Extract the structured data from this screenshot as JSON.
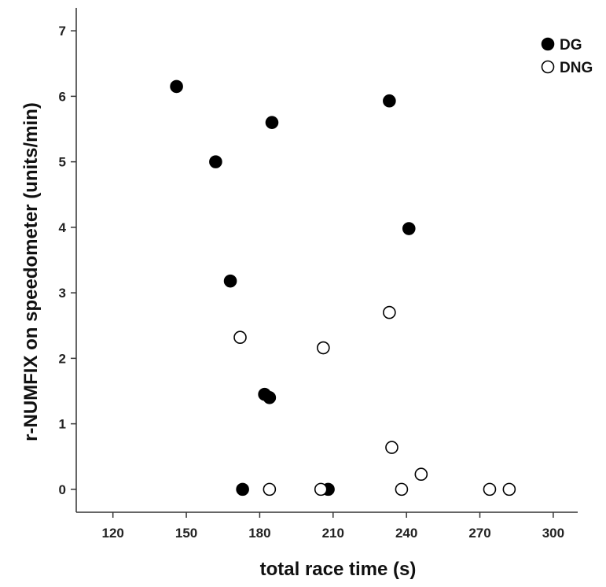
{
  "chart_data": {
    "type": "scatter",
    "title": "",
    "xlabel": "total race time (s)",
    "ylabel": "r-NUMFIX on speedometer (units/min)",
    "xlim": [
      105,
      310
    ],
    "ylim": [
      -0.35,
      7.35
    ],
    "xticks": [
      120,
      150,
      180,
      210,
      240,
      270,
      300
    ],
    "yticks": [
      0,
      1,
      2,
      3,
      4,
      5,
      6,
      7
    ],
    "grid": false,
    "legend_position": "top-right",
    "series": [
      {
        "name": "DG",
        "marker": "filled-circle",
        "color": "#000000",
        "points": [
          [
            146,
            6.15
          ],
          [
            185,
            5.6
          ],
          [
            233,
            5.93
          ],
          [
            162,
            5.0
          ],
          [
            241,
            3.98
          ],
          [
            168,
            3.18
          ],
          [
            182,
            1.45
          ],
          [
            184,
            1.4
          ],
          [
            173,
            0.0
          ],
          [
            208,
            0.0
          ]
        ]
      },
      {
        "name": "DNG",
        "marker": "open-circle",
        "color": "#000000",
        "points": [
          [
            233,
            2.7
          ],
          [
            172,
            2.32
          ],
          [
            206,
            2.16
          ],
          [
            234,
            0.64
          ],
          [
            246,
            0.23
          ],
          [
            184,
            0.0
          ],
          [
            205,
            0.0
          ],
          [
            238,
            0.0
          ],
          [
            274,
            0.0
          ],
          [
            282,
            0.0
          ]
        ]
      }
    ]
  }
}
